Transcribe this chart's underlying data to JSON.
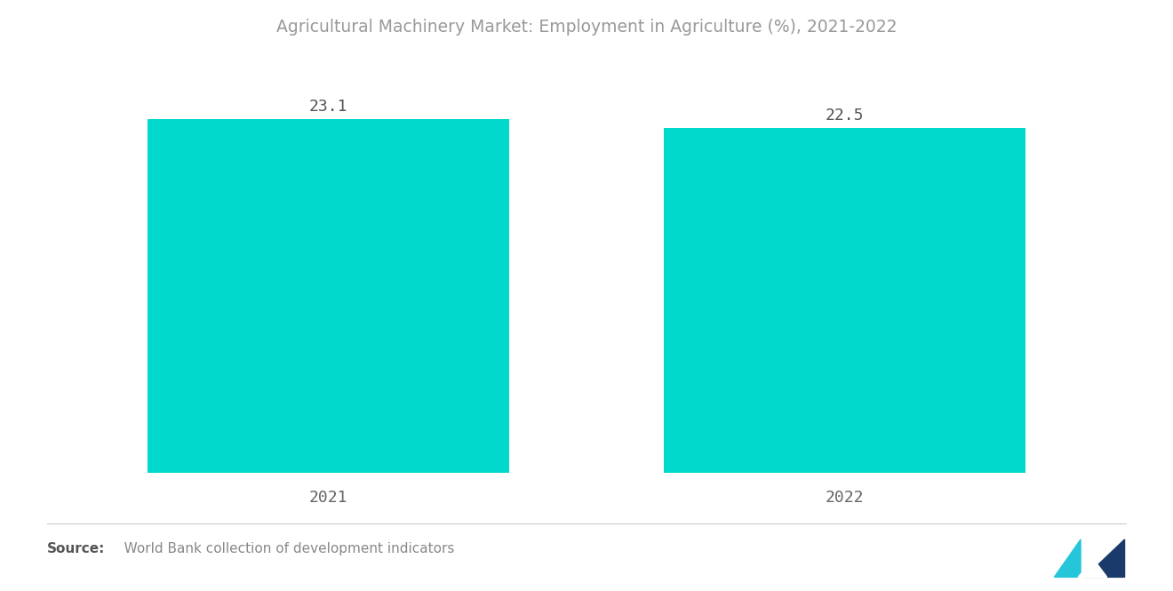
{
  "title": "Agricultural Machinery Market: Employment in Agriculture (%), 2021-2022",
  "categories": [
    "2021",
    "2022"
  ],
  "values": [
    23.1,
    22.5
  ],
  "bar_color": "#00D9CC",
  "value_labels": [
    "23.1",
    "22.5"
  ],
  "source_bold": "Source:",
  "source_text": "   World Bank collection of development indicators",
  "title_color": "#999999",
  "label_color": "#666666",
  "value_color": "#555555",
  "source_color": "#888888",
  "background_color": "#ffffff",
  "ylim": [
    0,
    27
  ],
  "bar_positions": [
    1.0,
    3.0
  ],
  "bar_width": 1.4,
  "xlim": [
    0.0,
    4.0
  ],
  "title_fontsize": 13.5,
  "label_fontsize": 13,
  "value_fontsize": 13,
  "source_fontsize": 11
}
